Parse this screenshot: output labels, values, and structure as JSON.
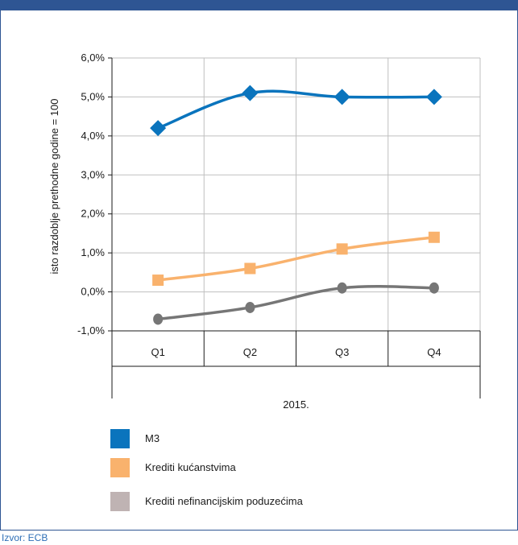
{
  "header": {
    "title": ""
  },
  "source": "Izvor: ECB",
  "colors": {
    "header_bg": "#2e5593",
    "grid": "#bfbfbf",
    "axis": "#1a1a1a",
    "source_text": "#2e6fb7"
  },
  "chart_data": {
    "type": "line",
    "title": "",
    "xlabel": "2015.",
    "ylabel": "isto razdoblje prethodne  godine = 100",
    "categories": [
      "Q1",
      "Q2",
      "Q3",
      "Q4"
    ],
    "ylim": [
      -1.0,
      6.0
    ],
    "yticks": [
      -1.0,
      0.0,
      1.0,
      2.0,
      3.0,
      4.0,
      5.0,
      6.0
    ],
    "ytick_labels": [
      "-1,0%",
      "0,0%",
      "1,0%",
      "2,0%",
      "3,0%",
      "4,0%",
      "5,0%",
      "6,0%"
    ],
    "grid": true,
    "legend_position": "bottom",
    "series": [
      {
        "name": "M3",
        "values": [
          4.2,
          5.1,
          5.0,
          5.0
        ],
        "color": "#0a74bd",
        "marker": "diamond",
        "legend_color": "#0a74bd"
      },
      {
        "name": "Krediti kućanstvima",
        "values": [
          0.3,
          0.6,
          1.1,
          1.4
        ],
        "color": "#f9b26d",
        "marker": "square",
        "legend_color": "#f9b26d"
      },
      {
        "name": "Krediti nefinancijskim poduzećima",
        "values": [
          -0.7,
          -0.4,
          0.1,
          0.1
        ],
        "color": "#767676",
        "marker": "circle",
        "legend_color": "#bfb3b3"
      }
    ]
  }
}
